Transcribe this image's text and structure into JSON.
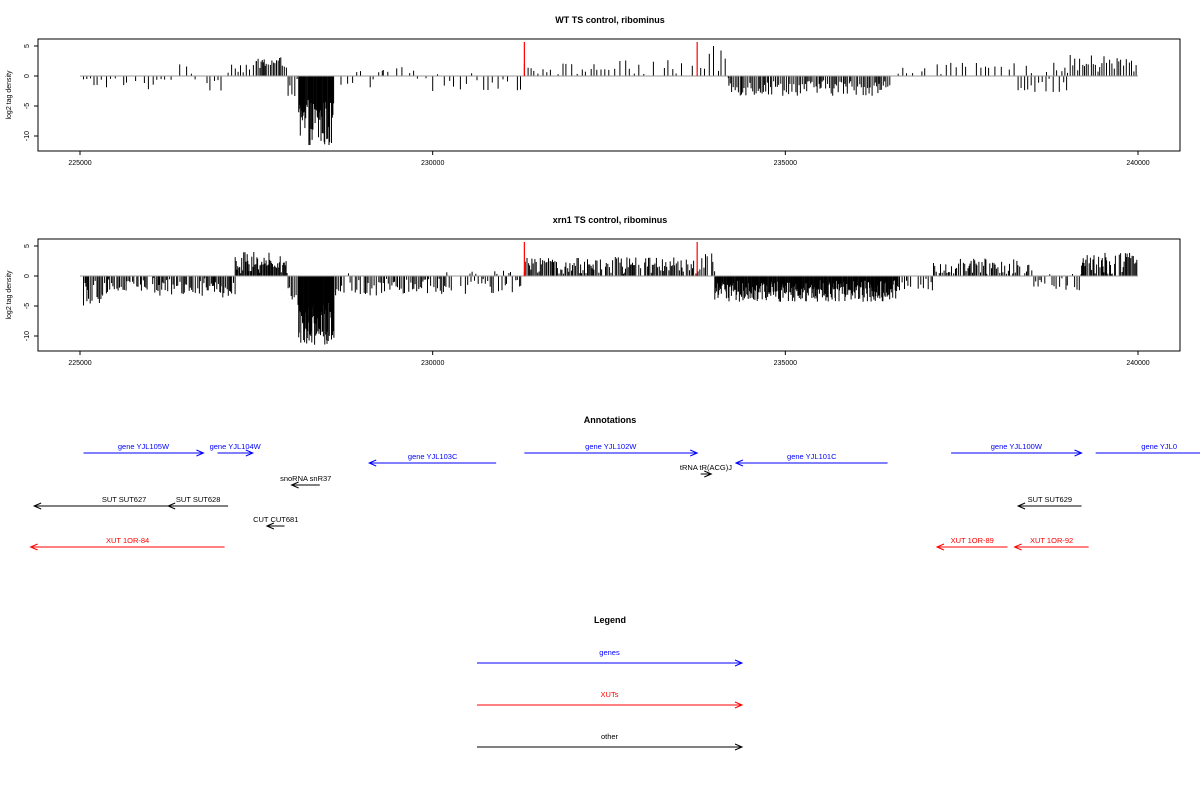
{
  "chart_data": [
    {
      "type": "bar",
      "title": "WT TS control, ribominus",
      "ylabel": "log2 tag density",
      "xlim": [
        225000,
        240000
      ],
      "ylim": [
        -12,
        6
      ],
      "x_ticks": [
        225000,
        230000,
        235000,
        240000
      ],
      "y_ticks": [
        5,
        0,
        -5,
        -10
      ],
      "highlight_positions": [
        231300,
        233750
      ],
      "highlight_color": "#ff0000",
      "bar_color": "#000000",
      "segments": [
        {
          "start": 225050,
          "end": 225500,
          "base": -1,
          "var": 1,
          "step": 60
        },
        {
          "start": 225500,
          "end": 226200,
          "base": -1,
          "var": 1.5,
          "step": 60
        },
        {
          "start": 226200,
          "end": 226800,
          "base": 0.5,
          "var": 1.5,
          "step": 70
        },
        {
          "start": 226800,
          "end": 227000,
          "base": -1,
          "var": 1.5,
          "step": 60
        },
        {
          "start": 227100,
          "end": 227500,
          "base": 1.5,
          "var": 1,
          "step": 40
        },
        {
          "start": 227500,
          "end": 227950,
          "base": 2.2,
          "var": 1,
          "step": 22
        },
        {
          "start": 227950,
          "end": 228100,
          "base": -2,
          "var": 1.5,
          "step": 30
        },
        {
          "start": 228100,
          "end": 228600,
          "base": -8,
          "var": 4,
          "step": 9
        },
        {
          "start": 228700,
          "end": 229300,
          "base": -1,
          "var": 2,
          "step": 70
        },
        {
          "start": 229300,
          "end": 230000,
          "base": 0.5,
          "var": 1,
          "step": 80
        },
        {
          "start": 230000,
          "end": 231300,
          "base": -1,
          "var": 1.5,
          "step": 70
        },
        {
          "start": 231300,
          "end": 232500,
          "base": 1.2,
          "var": 1,
          "step": 60
        },
        {
          "start": 232500,
          "end": 233700,
          "base": 1.2,
          "var": 1.5,
          "step": 60
        },
        {
          "start": 233800,
          "end": 234200,
          "base": 2,
          "var": 3,
          "step": 50
        },
        {
          "start": 234200,
          "end": 236500,
          "base": -2,
          "var": 1.3,
          "step": 22
        },
        {
          "start": 236600,
          "end": 239000,
          "base": 1,
          "var": 1.2,
          "step": 65
        },
        {
          "start": 238300,
          "end": 239000,
          "base": -1.5,
          "var": 1.3,
          "step": 45
        },
        {
          "start": 239000,
          "end": 240000,
          "base": 2,
          "var": 1.5,
          "step": 35
        }
      ]
    },
    {
      "type": "bar",
      "title": "xrn1 TS control, ribominus",
      "ylabel": "log2 tag density",
      "xlim": [
        225000,
        240000
      ],
      "ylim": [
        -12,
        6
      ],
      "x_ticks": [
        225000,
        230000,
        235000,
        240000
      ],
      "y_ticks": [
        5,
        0,
        -5,
        -10
      ],
      "highlight_positions": [
        231300,
        233750
      ],
      "highlight_color": "#ff0000",
      "bar_color": "#000000",
      "segments": [
        {
          "start": 225050,
          "end": 225300,
          "base": -2.5,
          "var": 2.5,
          "step": 18
        },
        {
          "start": 225300,
          "end": 227000,
          "base": -1.5,
          "var": 1.8,
          "step": 20
        },
        {
          "start": 227000,
          "end": 227200,
          "base": -2.5,
          "var": 1.5,
          "step": 20
        },
        {
          "start": 227200,
          "end": 227950,
          "base": 2.2,
          "var": 1.8,
          "step": 14
        },
        {
          "start": 227950,
          "end": 228100,
          "base": -3,
          "var": 2,
          "step": 20
        },
        {
          "start": 228100,
          "end": 228600,
          "base": -8,
          "var": 3.5,
          "step": 7
        },
        {
          "start": 228600,
          "end": 229300,
          "base": -1.5,
          "var": 2,
          "step": 25
        },
        {
          "start": 229300,
          "end": 230200,
          "base": -1.5,
          "var": 1.5,
          "step": 22
        },
        {
          "start": 230200,
          "end": 231300,
          "base": -1,
          "var": 2,
          "step": 25
        },
        {
          "start": 231300,
          "end": 233700,
          "base": 1.6,
          "var": 1.6,
          "step": 18
        },
        {
          "start": 233700,
          "end": 234000,
          "base": 2,
          "var": 2,
          "step": 25
        },
        {
          "start": 234000,
          "end": 236600,
          "base": -2.5,
          "var": 1.8,
          "step": 9
        },
        {
          "start": 236600,
          "end": 237100,
          "base": -1,
          "var": 1.5,
          "step": 30
        },
        {
          "start": 237100,
          "end": 238500,
          "base": 1.5,
          "var": 1.5,
          "step": 20
        },
        {
          "start": 238500,
          "end": 239200,
          "base": -1,
          "var": 1.5,
          "step": 25
        },
        {
          "start": 239200,
          "end": 240000,
          "base": 2,
          "var": 2,
          "step": 15
        }
      ]
    }
  ],
  "annotations": {
    "title": "Annotations",
    "items": [
      {
        "label": "gene YJL105W",
        "x1": 225050,
        "x2": 226750,
        "row": 1,
        "dir": "right",
        "color": "#0000ff"
      },
      {
        "label": "gene YJL104W",
        "x1": 226950,
        "x2": 227450,
        "row": 1,
        "dir": "right",
        "color": "#0000ff"
      },
      {
        "label": "gene YJL103C",
        "x1": 229100,
        "x2": 230900,
        "row": 2,
        "dir": "left",
        "color": "#0000ff"
      },
      {
        "label": "gene YJL102W",
        "x1": 231300,
        "x2": 233750,
        "row": 1,
        "dir": "right",
        "color": "#0000ff"
      },
      {
        "label": "tRNA tR(ACG)J",
        "x1": 233800,
        "x2": 233950,
        "row": 3,
        "dir": "right",
        "color": "#000000"
      },
      {
        "label": "gene YJL101C",
        "x1": 234300,
        "x2": 236450,
        "row": 2,
        "dir": "left",
        "color": "#0000ff"
      },
      {
        "label": "gene YJL100W",
        "x1": 237350,
        "x2": 239200,
        "row": 1,
        "dir": "right",
        "color": "#0000ff"
      },
      {
        "label": "gene YJL0",
        "x1": 239400,
        "x2": 241200,
        "row": 1,
        "dir": "right",
        "color": "#0000ff"
      },
      {
        "label": "snoRNA snR37",
        "x1": 228000,
        "x2": 228400,
        "row": 4,
        "dir": "left",
        "color": "#000000"
      },
      {
        "label": "SUT SUT627",
        "x1": 224350,
        "x2": 226900,
        "row": 5,
        "dir": "left",
        "color": "#000000"
      },
      {
        "label": "SUT SUT628",
        "x1": 226250,
        "x2": 227100,
        "row": 5,
        "dir": "left",
        "color": "#000000"
      },
      {
        "label": "SUT SUT629",
        "x1": 238300,
        "x2": 239200,
        "row": 5,
        "dir": "left",
        "color": "#000000"
      },
      {
        "label": "CUT CUT681",
        "x1": 227650,
        "x2": 227900,
        "row": 6,
        "dir": "left",
        "color": "#000000"
      },
      {
        "label": "XUT 1OR-84",
        "x1": 224300,
        "x2": 227050,
        "row": 7,
        "dir": "left",
        "color": "#ff0000"
      },
      {
        "label": "XUT 1OR-89",
        "x1": 237150,
        "x2": 238150,
        "row": 7,
        "dir": "left",
        "color": "#ff0000"
      },
      {
        "label": "XUT 1OR-92",
        "x1": 238250,
        "x2": 239300,
        "row": 7,
        "dir": "left",
        "color": "#ff0000"
      }
    ]
  },
  "legend": {
    "title": "Legend",
    "items": [
      {
        "label": "genes",
        "color": "#0000ff"
      },
      {
        "label": "XUTs",
        "color": "#ff0000"
      },
      {
        "label": "other",
        "color": "#000000"
      }
    ]
  }
}
